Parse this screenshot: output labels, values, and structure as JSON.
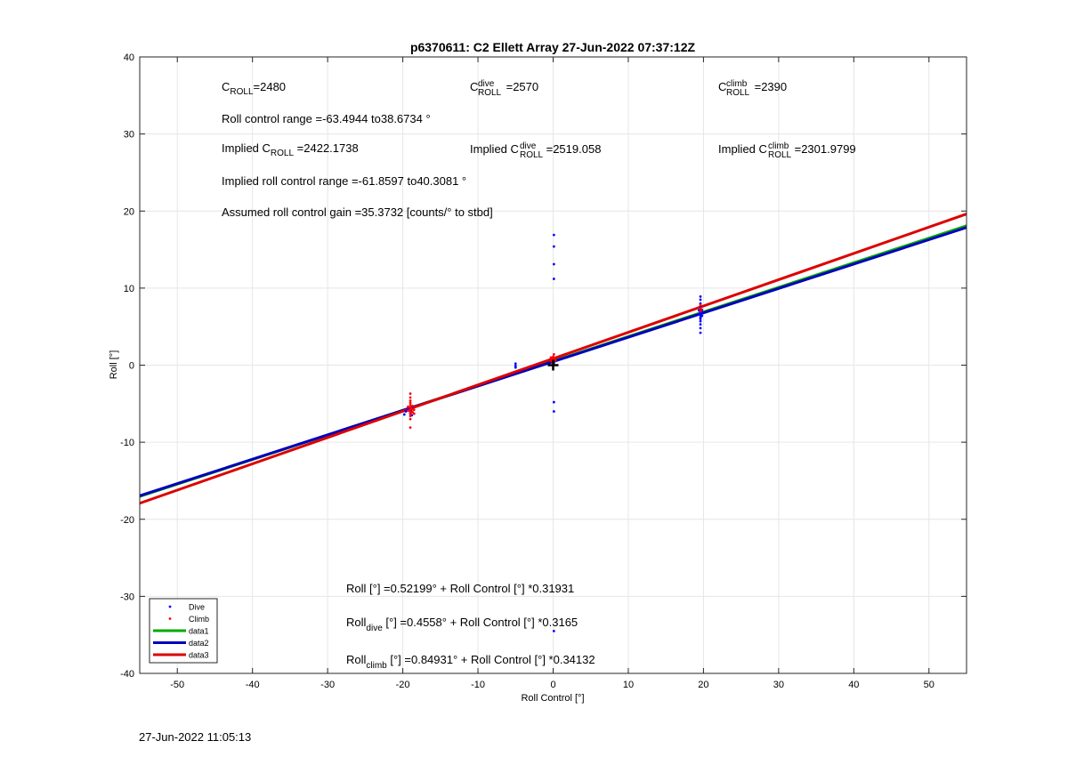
{
  "page_timestamp": "27-Jun-2022 11:05:13",
  "chart_data": {
    "type": "scatter",
    "title": "p6370611: C2 Ellett Array 27-Jun-2022 07:37:12Z",
    "xlabel": "Roll Control [°]",
    "ylabel": "Roll [°]",
    "xlim": [
      -55,
      55
    ],
    "ylim": [
      -40,
      40
    ],
    "xticks": [
      -50,
      -40,
      -30,
      -20,
      -10,
      0,
      10,
      20,
      30,
      40,
      50
    ],
    "yticks": [
      -40,
      -30,
      -20,
      -10,
      0,
      10,
      20,
      30,
      40
    ],
    "grid": true,
    "legend_position": "bottom-left",
    "legend": [
      {
        "label": "Dive",
        "kind": "marker",
        "color": "#0000ff"
      },
      {
        "label": "Climb",
        "kind": "marker",
        "color": "#ff0000"
      },
      {
        "label": "data1",
        "kind": "line",
        "color": "#00aa00"
      },
      {
        "label": "data2",
        "kind": "line",
        "color": "#0000bb"
      },
      {
        "label": "data3",
        "kind": "line",
        "color": "#dd0000"
      }
    ],
    "lines": [
      {
        "name": "data1",
        "color": "#00aa00",
        "intercept": 0.52199,
        "slope": 0.31931
      },
      {
        "name": "data2",
        "color": "#0000bb",
        "intercept": 0.4558,
        "slope": 0.3165
      },
      {
        "name": "data3",
        "color": "#dd0000",
        "intercept": 0.84931,
        "slope": 0.34132
      }
    ],
    "series": [
      {
        "name": "Dive",
        "color": "#0000ff",
        "points": [
          [
            -19.8,
            -6.4
          ],
          [
            -19.6,
            -6.0
          ],
          [
            -19.4,
            -5.8
          ],
          [
            -19.1,
            -5.6
          ],
          [
            -19.0,
            -6.2
          ],
          [
            -18.9,
            -5.9
          ],
          [
            -18.8,
            -6.5
          ],
          [
            -18.7,
            -5.4
          ],
          [
            -5.0,
            -0.1
          ],
          [
            -5.0,
            0.2
          ],
          [
            -5.0,
            -0.3
          ],
          [
            0.1,
            16.9
          ],
          [
            0.1,
            15.4
          ],
          [
            0.1,
            13.1
          ],
          [
            0.1,
            11.2
          ],
          [
            0.1,
            -4.8
          ],
          [
            0.1,
            -6.0
          ],
          [
            0.1,
            -34.5
          ],
          [
            0.1,
            0.3
          ],
          [
            0.1,
            0.6
          ],
          [
            19.6,
            4.2
          ],
          [
            19.6,
            4.8
          ],
          [
            19.6,
            5.3
          ],
          [
            19.6,
            5.7
          ],
          [
            19.6,
            6.0
          ],
          [
            19.6,
            6.2
          ],
          [
            19.6,
            6.5
          ],
          [
            19.6,
            6.8
          ],
          [
            19.6,
            7.0
          ],
          [
            19.6,
            7.3
          ],
          [
            19.6,
            7.6
          ],
          [
            19.6,
            8.0
          ],
          [
            19.6,
            8.5
          ],
          [
            19.6,
            8.9
          ],
          [
            19.8,
            6.4
          ],
          [
            19.8,
            6.9
          ],
          [
            19.8,
            7.2
          ],
          [
            19.4,
            6.6
          ],
          [
            19.4,
            7.1
          ]
        ]
      },
      {
        "name": "Climb",
        "color": "#ff0000",
        "points": [
          [
            -19.0,
            -8.1
          ],
          [
            -19.0,
            -7.0
          ],
          [
            -19.0,
            -6.6
          ],
          [
            -19.0,
            -6.3
          ],
          [
            -19.0,
            -6.0
          ],
          [
            -19.0,
            -5.8
          ],
          [
            -19.0,
            -5.5
          ],
          [
            -19.0,
            -5.2
          ],
          [
            -19.0,
            -4.9
          ],
          [
            -19.0,
            -4.6
          ],
          [
            -19.0,
            -4.2
          ],
          [
            -19.0,
            -3.7
          ],
          [
            -18.7,
            -6.1
          ],
          [
            -18.7,
            -5.7
          ],
          [
            -18.7,
            -5.3
          ],
          [
            -19.3,
            -5.9
          ],
          [
            -19.3,
            -5.4
          ],
          [
            -18.5,
            -5.8
          ],
          [
            -18.5,
            -6.3
          ],
          [
            -0.2,
            0.5
          ],
          [
            -0.1,
            0.8
          ],
          [
            0.0,
            1.1
          ],
          [
            0.1,
            1.4
          ],
          [
            0.2,
            0.9
          ],
          [
            -0.3,
            1.0
          ],
          [
            0.3,
            0.6
          ],
          [
            0.0,
            0.3
          ],
          [
            19.6,
            7.0
          ],
          [
            19.6,
            7.4
          ],
          [
            19.6,
            7.8
          ],
          [
            19.7,
            7.2
          ]
        ]
      }
    ],
    "marker_cross": {
      "x": 0,
      "y": 0,
      "color": "#000000"
    },
    "annotations": {
      "c_roll": {
        "base": "C",
        "sub": "ROLL",
        "rest": "=2480"
      },
      "c_roll_dive": {
        "base": "C",
        "sup": "dive",
        "sub": "ROLL",
        "rest": " =2570"
      },
      "c_roll_climb": {
        "base": "C",
        "sup": "climb",
        "sub": "ROLL",
        "rest": " =2390"
      },
      "roll_control_range": "Roll control range =-63.4944 to38.6734 °",
      "implied_c_roll": {
        "pre": "Implied C",
        "sub": "ROLL",
        "rest": " =2422.1738"
      },
      "implied_c_roll_dive": {
        "pre": "Implied C",
        "sup": "dive",
        "sub": "ROLL",
        "rest": " =2519.058"
      },
      "implied_c_roll_climb": {
        "pre": "Implied C",
        "sup": "climb",
        "sub": "ROLL",
        "rest": " =2301.9799"
      },
      "implied_roll_range": "Implied roll control range =-61.8597 to40.3081 °",
      "assumed_gain": "Assumed roll control gain =35.3732 [counts/° to stbd]",
      "fit_all": "Roll [°] =0.52199° + Roll Control [°] *0.31931",
      "fit_dive": {
        "pre": "Roll",
        "sub": "dive",
        "rest": " [°] =0.4558° + Roll Control [°] *0.3165"
      },
      "fit_climb": {
        "pre": "Roll",
        "sub": "climb",
        "rest": " [°] =0.84931° + Roll Control [°] *0.34132"
      }
    }
  }
}
